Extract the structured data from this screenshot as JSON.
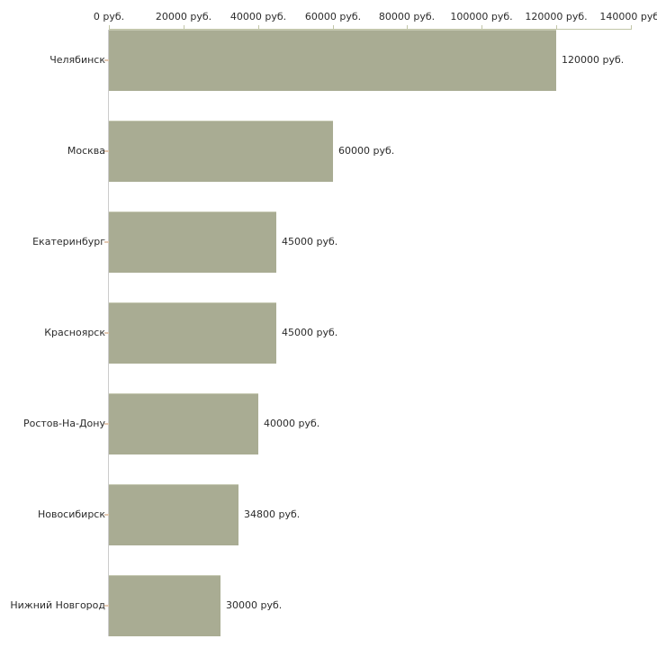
{
  "chart_data": {
    "type": "bar",
    "orientation": "horizontal",
    "title": "",
    "xlabel": "",
    "ylabel": "",
    "grid": false,
    "legend": false,
    "categories": [
      "Челябинск",
      "Москва",
      "Екатеринбург",
      "Красноярск",
      "Ростов-На-Дону",
      "Новосибирск",
      "Нижний Новгород"
    ],
    "values": [
      120000,
      60000,
      45000,
      45000,
      40000,
      34800,
      30000
    ],
    "value_labels": [
      "120000 руб.",
      "60000 руб.",
      "45000 руб.",
      "45000 руб.",
      "40000 руб.",
      "34800 руб.",
      "30000 руб."
    ],
    "x_axis": {
      "position": "top",
      "min": 0,
      "max": 140000,
      "ticks": [
        0,
        20000,
        40000,
        60000,
        80000,
        100000,
        120000,
        140000
      ],
      "tick_labels": [
        "0 руб.",
        "20000 руб.",
        "40000 руб.",
        "60000 руб.",
        "80000 руб.",
        "100000 руб.",
        "120000 руб.",
        "140000 руб."
      ]
    }
  },
  "colors": {
    "background": "#ffffff",
    "bar_fill": "#a9ac93",
    "bar_top_edge": "#c5c8b1",
    "axis_line": "#c2c6a8",
    "category_axis_line": "#cccccc",
    "category_tick": "#e3c9b3",
    "text": "#2b2b2b"
  }
}
